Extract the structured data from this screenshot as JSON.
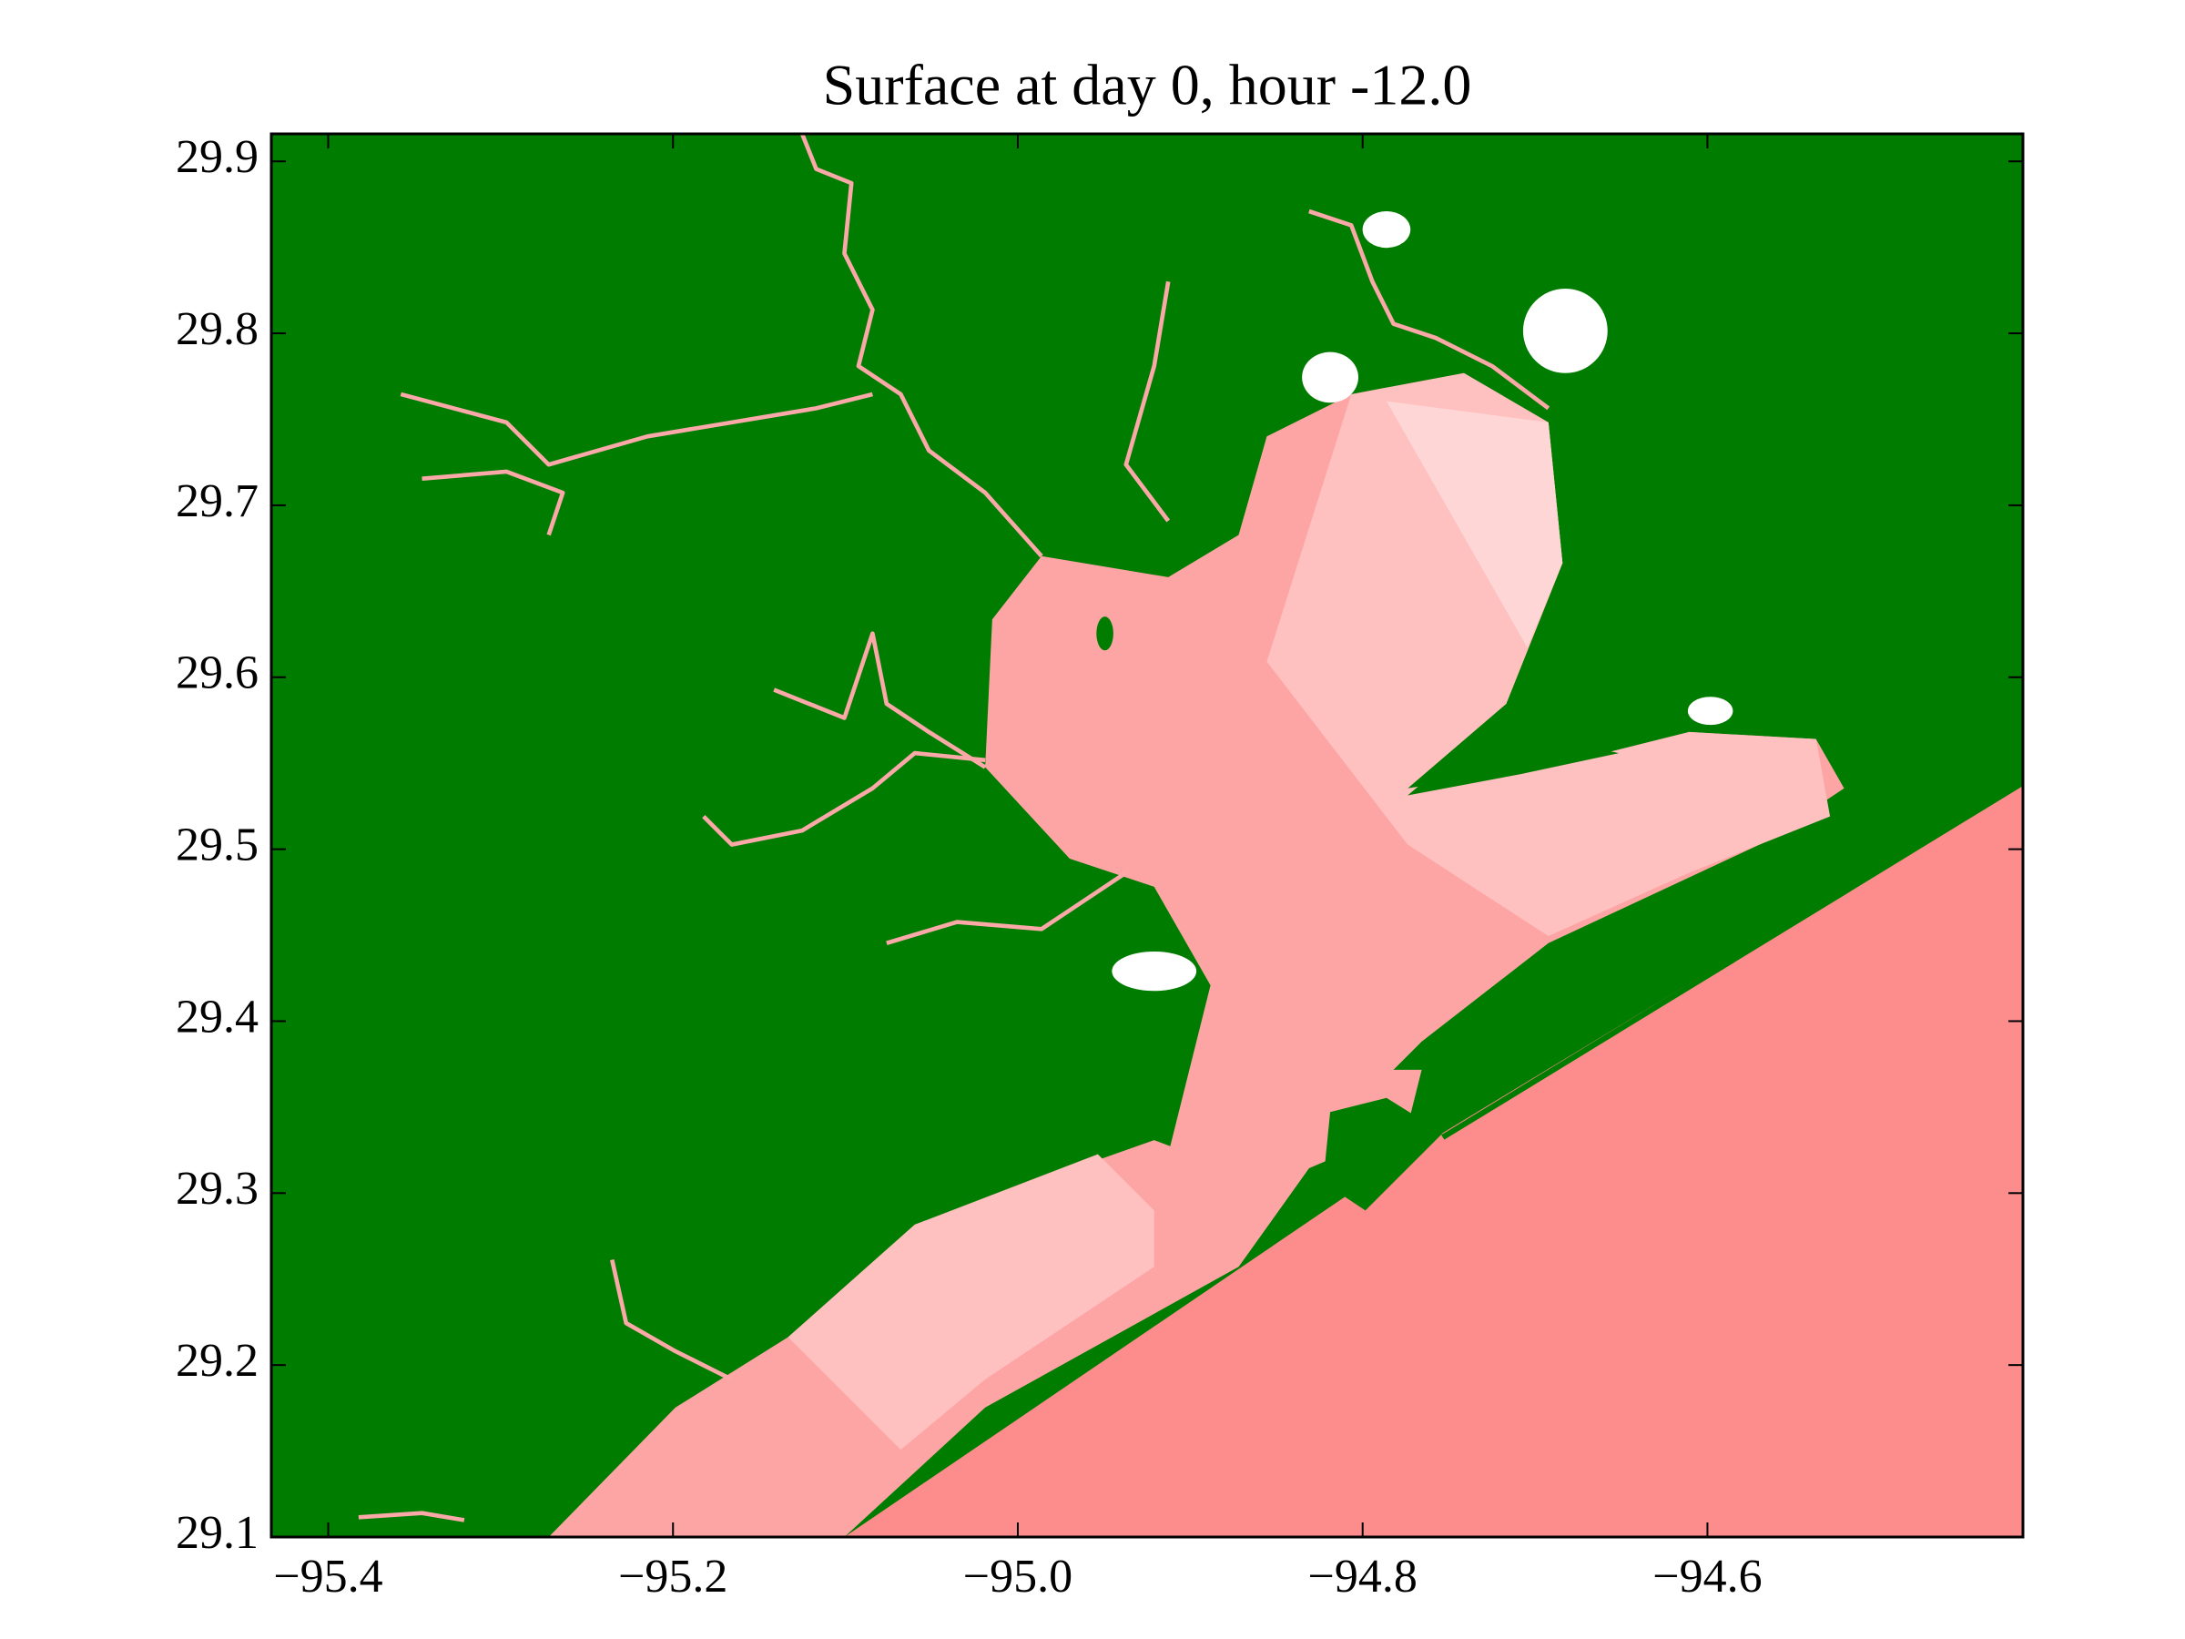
{
  "chart_data": {
    "type": "map",
    "title": "Surface at day 0, hour -12.0",
    "xlim": [
      -95.433,
      -94.417
    ],
    "ylim": [
      29.1,
      29.916
    ],
    "xticks": [
      {
        "value": -95.4,
        "label": "−95.4"
      },
      {
        "value": -95.2,
        "label": "−95.2"
      },
      {
        "value": -95.0,
        "label": "−95.0"
      },
      {
        "value": -94.8,
        "label": "−94.8"
      },
      {
        "value": -94.6,
        "label": "−94.6"
      }
    ],
    "yticks": [
      29.1,
      29.2,
      29.3,
      29.4,
      29.5,
      29.6,
      29.7,
      29.8,
      29.9
    ],
    "land_color": "#007c00"
  }
}
